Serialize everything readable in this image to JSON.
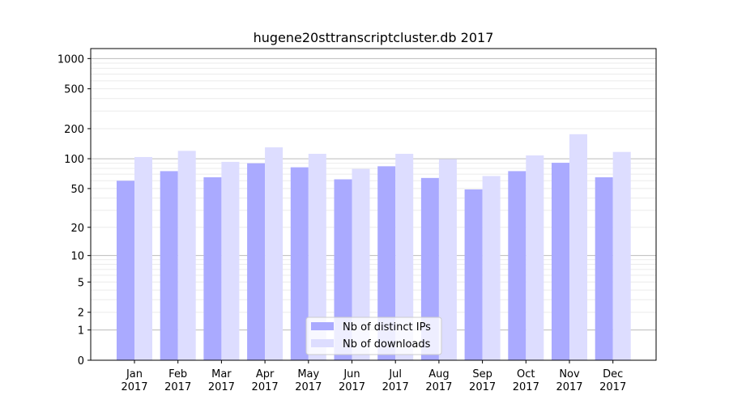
{
  "chart_data": {
    "type": "bar",
    "title": "hugene20sttranscriptcluster.db 2017",
    "xlabel": "",
    "ylabel": "",
    "yscale": "symlog",
    "ylim": [
      0,
      1250
    ],
    "yticks": [
      0,
      1,
      2,
      5,
      10,
      20,
      50,
      100,
      200,
      500,
      1000
    ],
    "grid": true,
    "legend_position": "bottom-center",
    "categories": [
      "Jan\n2017",
      "Feb\n2017",
      "Mar\n2017",
      "Apr\n2017",
      "May\n2017",
      "Jun\n2017",
      "Jul\n2017",
      "Aug\n2017",
      "Sep\n2017",
      "Oct\n2017",
      "Nov\n2017",
      "Dec\n2017"
    ],
    "series": [
      {
        "name": "Nb of distinct IPs",
        "color": "#aaaaff",
        "values": [
          60,
          75,
          65,
          90,
          82,
          62,
          84,
          64,
          49,
          75,
          91,
          65
        ]
      },
      {
        "name": "Nb of downloads",
        "color": "#ddddff",
        "values": [
          104,
          120,
          93,
          130,
          112,
          79,
          112,
          99,
          67,
          108,
          176,
          117
        ]
      }
    ]
  }
}
